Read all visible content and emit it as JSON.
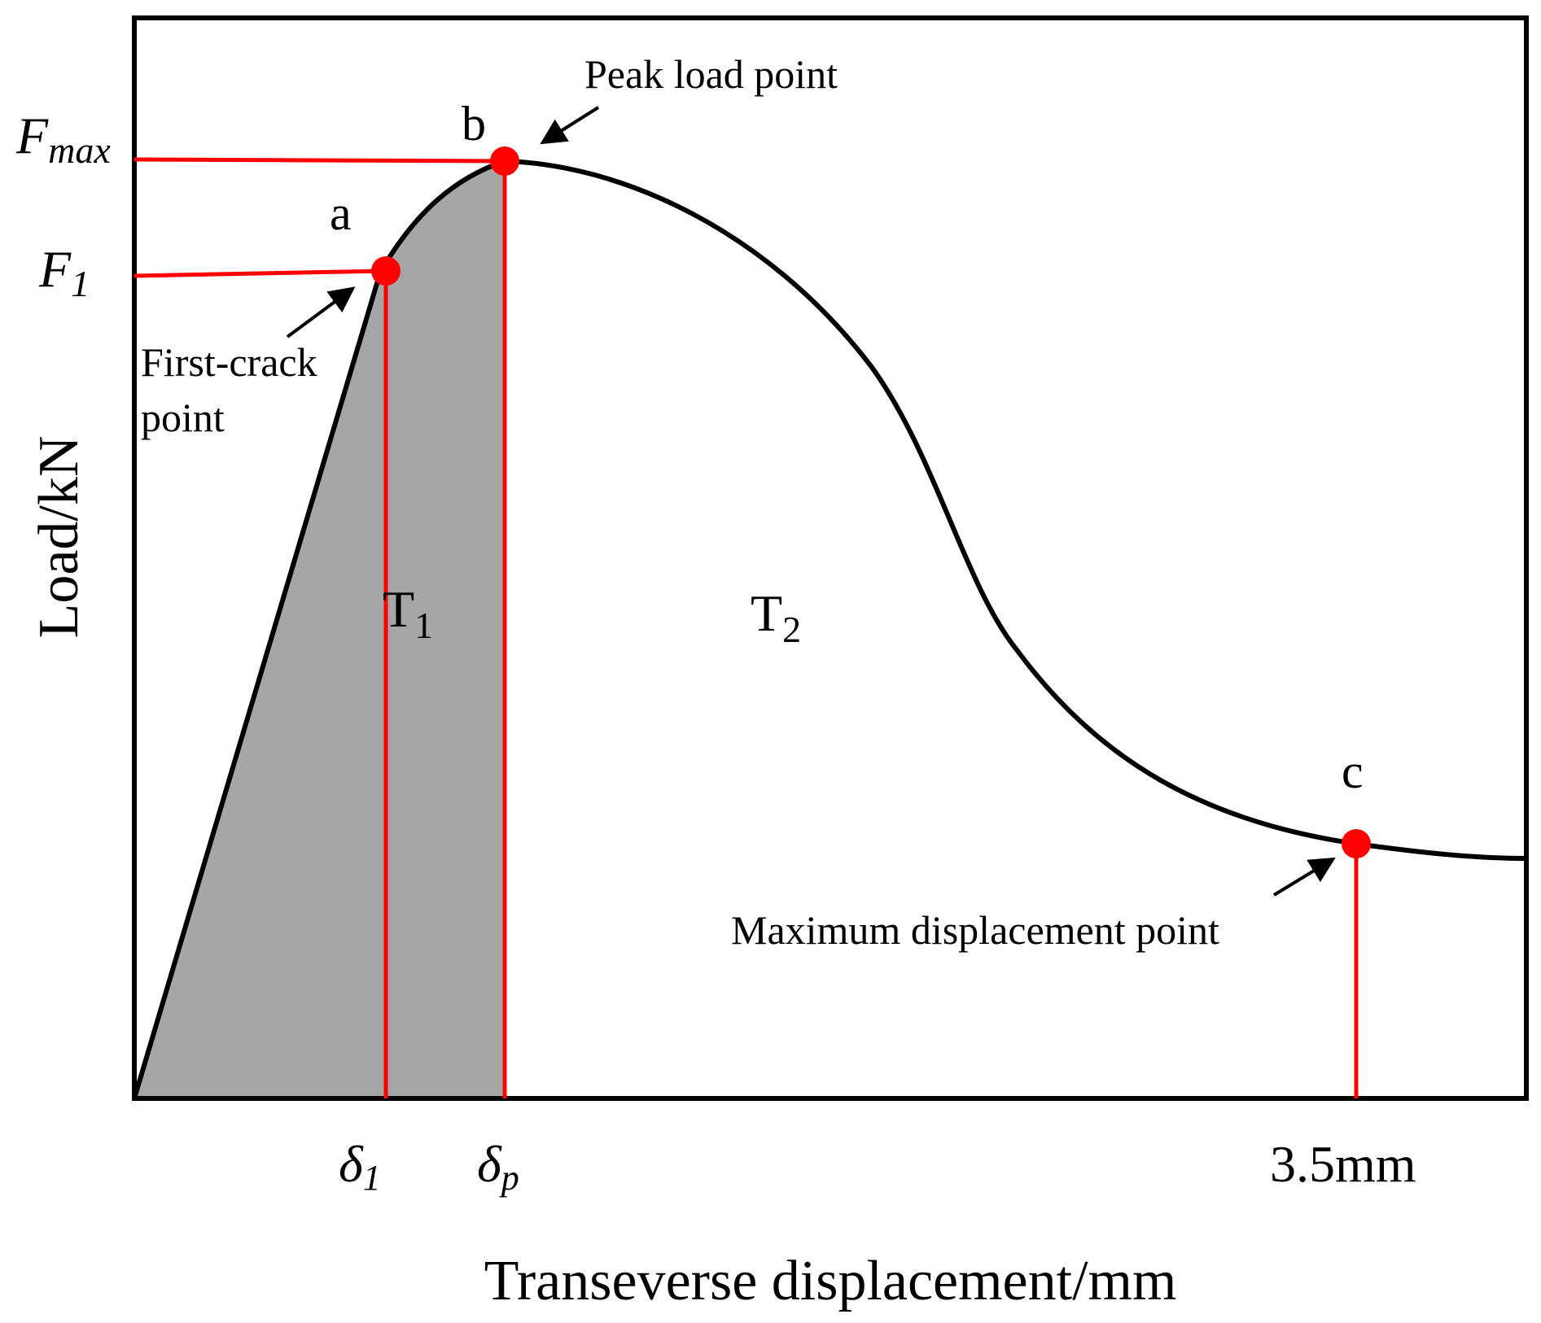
{
  "axes": {
    "xlabel": "Transeverse displacement/mm",
    "ylabel": "Load/kN"
  },
  "y_ticks": {
    "fmax": {
      "base": "F",
      "sub": "max"
    },
    "f1": {
      "base": "F",
      "sub": "1"
    }
  },
  "x_ticks": {
    "delta1": {
      "base": "δ",
      "sub": "1"
    },
    "deltap": {
      "base": "δ",
      "sub": "p"
    },
    "end": "3.5mm"
  },
  "points": {
    "a": "a",
    "b": "b",
    "c": "c"
  },
  "regions": {
    "t1": {
      "base": "T",
      "sub": "1"
    },
    "t2": {
      "base": "T",
      "sub": "2"
    }
  },
  "annotations": {
    "peak": "Peak load point",
    "first_crack_line1": "First-crack",
    "first_crack_line2": "point",
    "max_disp": "Maximum displacement point"
  },
  "colors": {
    "curve": "#000000",
    "marker": "#ff0000",
    "shade": "#a6a6a6"
  }
}
